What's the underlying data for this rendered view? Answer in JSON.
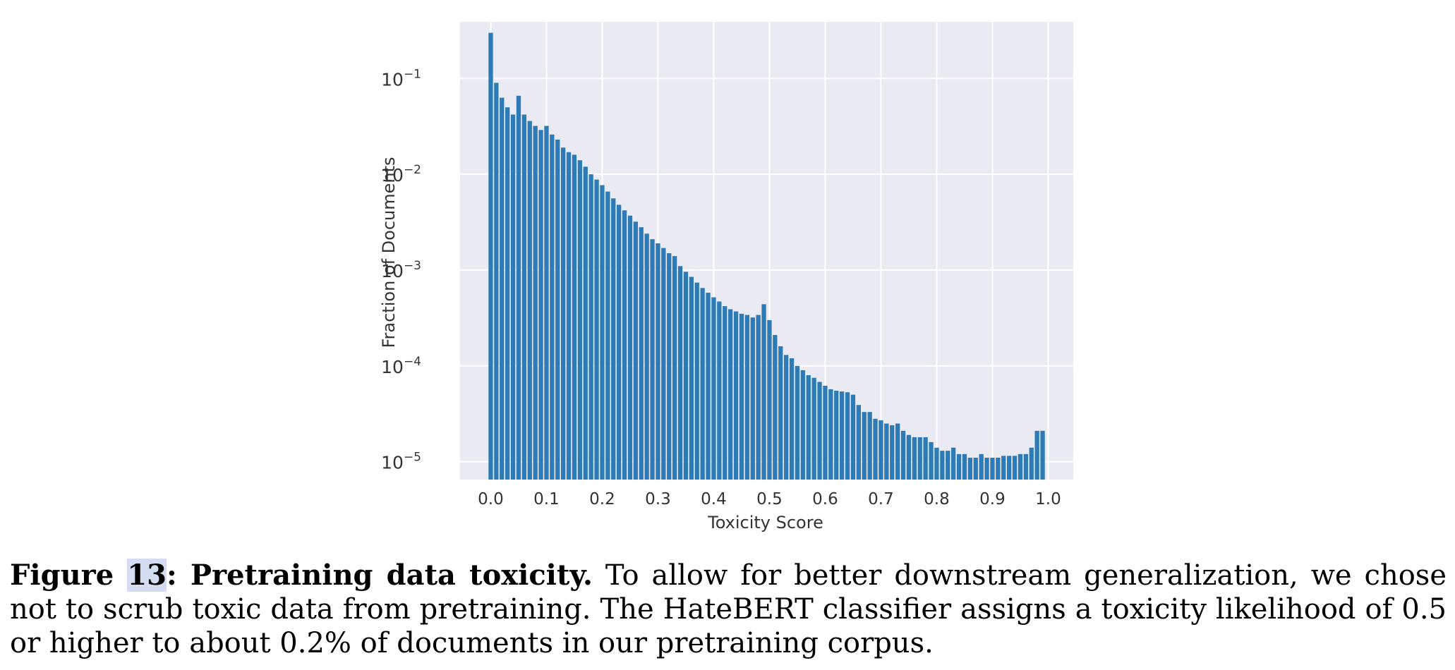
{
  "chart_data": {
    "type": "bar",
    "xlabel": "Toxicity Score",
    "ylabel": "Fraction of Documents",
    "yscale": "log",
    "ylim": [
      6.5e-06,
      0.39
    ],
    "xlim": [
      -0.055,
      1.045
    ],
    "grid": true,
    "bin_width": 0.01,
    "colors": {
      "bar": "#2d7bb6",
      "background": "#eaeaf2",
      "grid": "#ffffff"
    },
    "x_ticks": [
      "0.0",
      "0.1",
      "0.2",
      "0.3",
      "0.4",
      "0.5",
      "0.6",
      "0.7",
      "0.8",
      "0.9",
      "1.0"
    ],
    "x_tick_values": [
      0.0,
      0.1,
      0.2,
      0.3,
      0.4,
      0.5,
      0.6,
      0.7,
      0.8,
      0.9,
      1.0
    ],
    "y_ticks": [
      {
        "value": 0.1,
        "base": "10",
        "exp": "−1"
      },
      {
        "value": 0.01,
        "base": "10",
        "exp": "−2"
      },
      {
        "value": 0.001,
        "base": "10",
        "exp": "−3"
      },
      {
        "value": 0.0001,
        "base": "10",
        "exp": "−4"
      },
      {
        "value": 1e-05,
        "base": "10",
        "exp": "−5"
      }
    ],
    "x": [
      0.0,
      0.01,
      0.02,
      0.03,
      0.04,
      0.05,
      0.06,
      0.07,
      0.08,
      0.09,
      0.1,
      0.11,
      0.12,
      0.13,
      0.14,
      0.15,
      0.16,
      0.17,
      0.18,
      0.19,
      0.2,
      0.21,
      0.22,
      0.23,
      0.24,
      0.25,
      0.26,
      0.27,
      0.28,
      0.29,
      0.3,
      0.31,
      0.32,
      0.33,
      0.34,
      0.35,
      0.36,
      0.37,
      0.38,
      0.39,
      0.4,
      0.41,
      0.42,
      0.43,
      0.44,
      0.45,
      0.46,
      0.47,
      0.48,
      0.49,
      0.5,
      0.51,
      0.52,
      0.53,
      0.54,
      0.55,
      0.56,
      0.57,
      0.58,
      0.59,
      0.6,
      0.61,
      0.62,
      0.63,
      0.64,
      0.65,
      0.66,
      0.67,
      0.68,
      0.69,
      0.7,
      0.71,
      0.72,
      0.73,
      0.74,
      0.75,
      0.76,
      0.77,
      0.78,
      0.79,
      0.8,
      0.81,
      0.82,
      0.83,
      0.84,
      0.85,
      0.86,
      0.87,
      0.88,
      0.89,
      0.9,
      0.91,
      0.92,
      0.93,
      0.94,
      0.95,
      0.96,
      0.97,
      0.98,
      0.99
    ],
    "values": [
      0.3,
      0.09,
      0.063,
      0.05,
      0.042,
      0.066,
      0.042,
      0.036,
      0.032,
      0.029,
      0.032,
      0.026,
      0.023,
      0.019,
      0.017,
      0.016,
      0.014,
      0.012,
      0.01,
      0.0088,
      0.0077,
      0.0066,
      0.0056,
      0.0048,
      0.0042,
      0.0037,
      0.0032,
      0.0028,
      0.0024,
      0.0021,
      0.0019,
      0.0017,
      0.0015,
      0.0014,
      0.0011,
      0.00096,
      0.00085,
      0.00074,
      0.00065,
      0.00058,
      0.00052,
      0.00047,
      0.00042,
      0.00039,
      0.00037,
      0.00035,
      0.00034,
      0.00032,
      0.00034,
      0.00044,
      0.0003,
      0.00021,
      0.00016,
      0.00013,
      0.00012,
      0.0001,
      9e-05,
      8e-05,
      7.5e-05,
      6.8e-05,
      6.2e-05,
      5.7e-05,
      5.5e-05,
      5.4e-05,
      5.3e-05,
      5e-05,
      3.9e-05,
      3.3e-05,
      3.3e-05,
      2.8e-05,
      2.7e-05,
      2.5e-05,
      2.4e-05,
      2.5e-05,
      2.1e-05,
      1.9e-05,
      1.8e-05,
      1.8e-05,
      1.8e-05,
      1.6e-05,
      1.4e-05,
      1.3e-05,
      1.3e-05,
      1.4e-05,
      1.2e-05,
      1.2e-05,
      1.1e-05,
      1.1e-05,
      1.2e-05,
      1.1e-05,
      1.1e-05,
      1.1e-05,
      1.15e-05,
      1.15e-05,
      1.15e-05,
      1.2e-05,
      1.2e-05,
      1.4e-05,
      2.1e-05,
      2.1e-05
    ]
  },
  "caption": {
    "fig_word": "Figure ",
    "fig_num": "13",
    "fig_title": ": Pretraining data toxicity.",
    "text": " To allow for better downstream generalization, we chose not to scrub toxic data from pretraining. The HateBERT classifier assigns a toxicity likelihood of 0.5 or higher to about 0.2% of documents in our pretraining corpus."
  }
}
